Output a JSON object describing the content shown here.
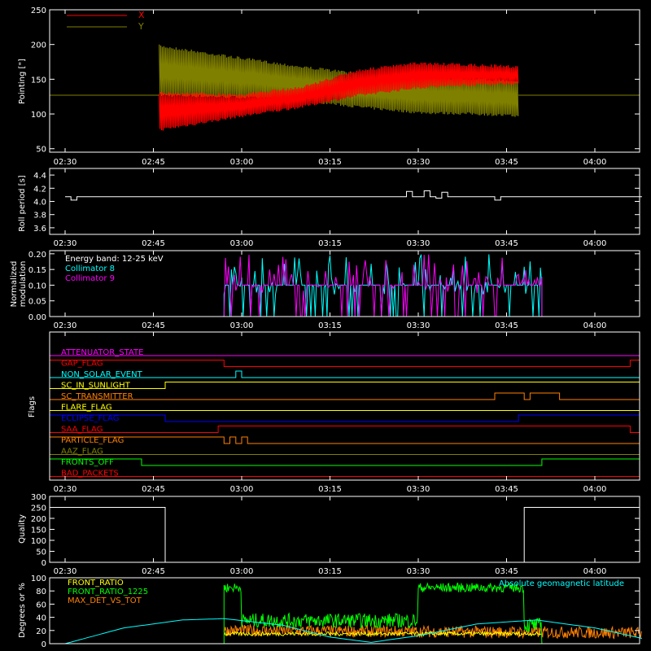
{
  "colors": {
    "background": "#000000",
    "axis": "#ffffff",
    "x_series": "#ff0000",
    "y_series": "#808000",
    "collimator8": "#00ffff",
    "collimator9": "#ff00ff",
    "front_ratio": "#ffff00",
    "front_ratio_1225": "#00ff00",
    "max_det_vs_tot": "#ff8000",
    "geomag": "#00ffff"
  },
  "time_ticks": [
    "02:30",
    "02:45",
    "03:00",
    "03:15",
    "03:30",
    "03:45",
    "04:00"
  ],
  "chart_data": [
    {
      "id": "pointing",
      "type": "line",
      "ylabel": "Pointing [\"]",
      "ylim": [
        45,
        250
      ],
      "yticks": [
        "50",
        "100",
        "150",
        "200",
        "250"
      ],
      "legend_position": "top-left",
      "series": [
        {
          "name": "X",
          "color": "#ff0000",
          "baseline": 127,
          "start": "02:46",
          "end": "03:47",
          "envelope_time": [
            "02:46",
            "03:00",
            "03:10",
            "03:20",
            "03:30",
            "03:40",
            "03:47"
          ],
          "envelope_min": [
            75,
            95,
            108,
            125,
            136,
            140,
            142
          ],
          "envelope_max": [
            132,
            130,
            140,
            165,
            175,
            172,
            170
          ]
        },
        {
          "name": "Y",
          "color": "#808000",
          "baseline": 127,
          "start": "02:46",
          "end": "03:47",
          "envelope_time": [
            "02:46",
            "03:00",
            "03:10",
            "03:20",
            "03:30",
            "03:40",
            "03:47"
          ],
          "envelope_min": [
            125,
            122,
            118,
            108,
            100,
            98,
            95
          ],
          "envelope_max": [
            200,
            182,
            170,
            160,
            155,
            152,
            150
          ]
        }
      ]
    },
    {
      "id": "roll_period",
      "type": "line",
      "ylabel": "Roll period [s]",
      "ylim": [
        3.5,
        4.5
      ],
      "yticks": [
        "3.6",
        "3.8",
        "4.0",
        "4.2",
        "4.4"
      ],
      "series": [
        {
          "name": "",
          "color": "#ffffff",
          "x": [
            "02:30",
            "02:31",
            "02:31",
            "02:32",
            "02:32",
            "02:48",
            "03:28",
            "03:28",
            "03:29",
            "03:29",
            "03:31",
            "03:31",
            "03:32",
            "03:32",
            "03:33",
            "03:33",
            "03:34",
            "03:34",
            "03:35",
            "03:35",
            "03:43",
            "03:43",
            "03:44",
            "03:44",
            "04:08"
          ],
          "y": [
            4.07,
            4.07,
            4.02,
            4.02,
            4.07,
            4.07,
            4.07,
            4.15,
            4.15,
            4.07,
            4.07,
            4.16,
            4.16,
            4.07,
            4.07,
            4.05,
            4.05,
            4.14,
            4.14,
            4.07,
            4.07,
            4.02,
            4.02,
            4.07,
            4.07
          ]
        }
      ]
    },
    {
      "id": "modulation",
      "type": "line",
      "ylabel": "Normalized modulation",
      "ylim": [
        0,
        0.21
      ],
      "yticks": [
        "0.00",
        "0.05",
        "0.10",
        "0.15",
        "0.20"
      ],
      "annotations": [
        "Energy band: 12-25 keV"
      ],
      "series": [
        {
          "name": "Collimator 8",
          "color": "#00ffff",
          "start": "02:57",
          "end": "03:51",
          "base": 0.1,
          "range": [
            0,
            0.2
          ]
        },
        {
          "name": "Collimator 9",
          "color": "#ff00ff",
          "start": "02:57",
          "end": "03:51",
          "base": 0.1,
          "range": [
            0,
            0.2
          ]
        }
      ]
    },
    {
      "id": "flags",
      "type": "line",
      "ylabel": "Flags",
      "series": [
        {
          "name": "ATTENUATOR_STATE",
          "color": "#ff00ff",
          "transitions": [
            [
              "02:30",
              0
            ]
          ]
        },
        {
          "name": "GAP_FLAG",
          "color": "#ff0000",
          "transitions": [
            [
              "02:30",
              1
            ],
            [
              "02:57",
              0
            ],
            [
              "04:06",
              1
            ]
          ]
        },
        {
          "name": "NON_SOLAR_EVENT",
          "color": "#00ffff",
          "transitions": [
            [
              "02:30",
              0
            ],
            [
              "02:59",
              1
            ],
            [
              "03:00",
              0
            ]
          ]
        },
        {
          "name": "SC_IN_SUNLIGHT",
          "color": "#ffff00",
          "transitions": [
            [
              "02:30",
              0
            ],
            [
              "02:47",
              1
            ]
          ]
        },
        {
          "name": "SC_TRANSMITTER",
          "color": "#ff8000",
          "transitions": [
            [
              "02:30",
              0
            ],
            [
              "03:43",
              1
            ],
            [
              "03:48",
              0
            ],
            [
              "03:49",
              1
            ],
            [
              "03:54",
              0
            ]
          ]
        },
        {
          "name": "FLARE_FLAG",
          "color": "#ffff00",
          "transitions": [
            [
              "02:30",
              0
            ]
          ]
        },
        {
          "name": "ECLIPSE_FLAG",
          "color": "#0000ff",
          "transitions": [
            [
              "02:30",
              1
            ],
            [
              "02:47",
              0
            ],
            [
              "03:47",
              1
            ]
          ]
        },
        {
          "name": "SAA_FLAG",
          "color": "#ff0000",
          "transitions": [
            [
              "02:30",
              0
            ],
            [
              "02:56",
              1
            ],
            [
              "04:06",
              0
            ]
          ]
        },
        {
          "name": "PARTICLE_FLAG",
          "color": "#ff8000",
          "transitions": [
            [
              "02:30",
              1
            ],
            [
              "02:57",
              0
            ],
            [
              "02:58",
              1
            ],
            [
              "02:59",
              0
            ],
            [
              "03:00",
              1
            ],
            [
              "03:01",
              0
            ]
          ]
        },
        {
          "name": "AAZ_FLAG",
          "color": "#808000",
          "transitions": [
            [
              "02:30",
              0
            ]
          ]
        },
        {
          "name": "FRONTS_OFF",
          "color": "#00ff00",
          "transitions": [
            [
              "02:30",
              1
            ],
            [
              "02:43",
              0
            ],
            [
              "03:51",
              1
            ]
          ]
        },
        {
          "name": "BAD_PACKETS",
          "color": "#ff0000",
          "transitions": [
            [
              "02:30",
              0
            ]
          ]
        }
      ]
    },
    {
      "id": "quality",
      "type": "line",
      "ylabel": "Quality",
      "ylim": [
        0,
        300
      ],
      "yticks": [
        "0",
        "50",
        "100",
        "150",
        "200",
        "250",
        "300"
      ],
      "series": [
        {
          "name": "",
          "color": "#ffffff",
          "x": [
            "02:30",
            "02:47",
            "02:47",
            "03:48",
            "03:48",
            "04:08"
          ],
          "y": [
            250,
            250,
            0,
            0,
            250,
            250
          ]
        }
      ]
    },
    {
      "id": "ratios",
      "type": "line",
      "ylabel": "Degrees or %",
      "ylim": [
        0,
        100
      ],
      "yticks": [
        "0",
        "20",
        "40",
        "60",
        "80",
        "100"
      ],
      "annotations": [
        "Absolute geomagnetic latitude"
      ],
      "series": [
        {
          "name": "FRONT_RATIO",
          "color": "#ffff00",
          "start": "02:57",
          "end": "03:51",
          "level": 15
        },
        {
          "name": "FRONT_RATIO_1225",
          "color": "#00ff00",
          "start": "02:57",
          "end": "03:51",
          "levels": [
            [
              "02:57",
              "03:00",
              85
            ],
            [
              "03:00",
              "03:30",
              35
            ],
            [
              "03:30",
              "03:48",
              85
            ],
            [
              "03:48",
              "03:51",
              28
            ]
          ]
        },
        {
          "name": "MAX_DET_VS_TOT",
          "color": "#ff8000",
          "start": "02:57",
          "end": "04:08",
          "level": 20
        },
        {
          "name": "Absolute geomagnetic latitude",
          "color": "#00ffff",
          "x": [
            "02:30",
            "02:40",
            "02:50",
            "02:57",
            "03:07",
            "03:15",
            "03:22",
            "03:30",
            "03:40",
            "03:50",
            "04:00",
            "04:08"
          ],
          "y": [
            0,
            24,
            36,
            38,
            28,
            10,
            2,
            12,
            30,
            36,
            24,
            8
          ]
        }
      ]
    }
  ]
}
